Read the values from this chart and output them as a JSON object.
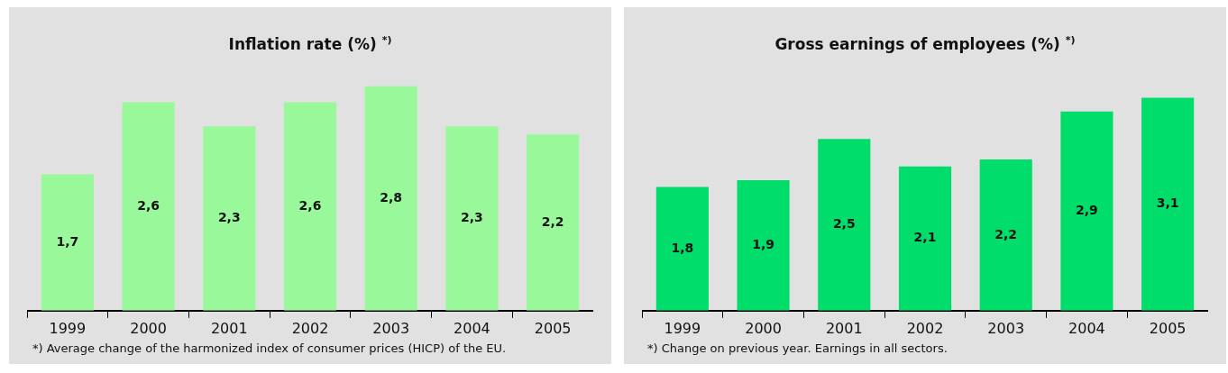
{
  "chart_data": [
    {
      "type": "bar",
      "title": "Inflation rate (%) $^{*)}$",
      "categories": [
        "1999",
        "2000",
        "2001",
        "2002",
        "2003",
        "2004",
        "2005"
      ],
      "values": [
        1.7,
        2.6,
        2.3,
        2.6,
        2.8,
        2.3,
        2.2
      ],
      "value_labels": [
        "1,7",
        "2,6",
        "2,3",
        "2,6",
        "2,8",
        "2,3",
        "2,2"
      ],
      "color": "#99f99a",
      "grid": false,
      "legend": false,
      "annotations": [
        "*) Average change of the harmonized index of consumer prices (HICP) of the EU."
      ]
    },
    {
      "type": "bar",
      "title": "Gross earnings of employees (%) $^{*)}$",
      "categories": [
        "1999",
        "2000",
        "2001",
        "2002",
        "2003",
        "2004",
        "2005"
      ],
      "values": [
        1.8,
        1.9,
        2.5,
        2.1,
        2.2,
        2.9,
        3.1
      ],
      "value_labels": [
        "1,8",
        "1,9",
        "2,5",
        "2,1",
        "2,2",
        "2,9",
        "3,1"
      ],
      "color": "#00dd6b",
      "grid": false,
      "legend": false,
      "annotations": [
        "*) Change on previous year. Earnings in all sectors."
      ]
    }
  ]
}
